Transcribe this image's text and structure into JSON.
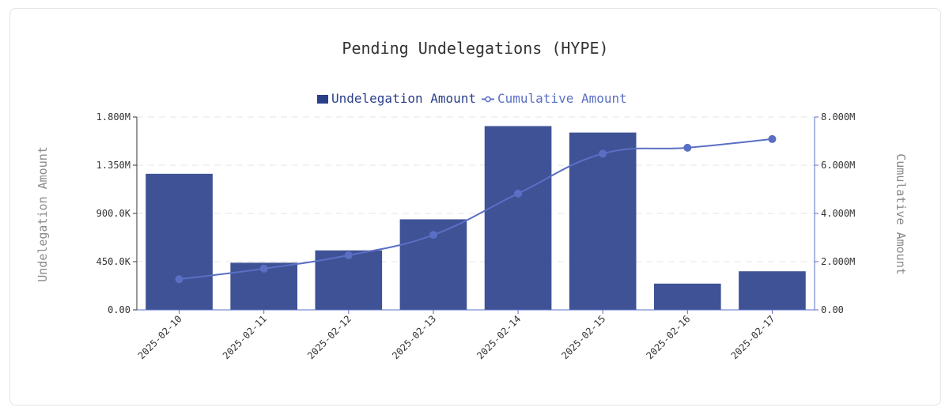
{
  "chart_data": {
    "type": "bar",
    "title": "Pending Undelegations (HYPE)",
    "categories": [
      "2025-02-10",
      "2025-02-11",
      "2025-02-12",
      "2025-02-13",
      "2025-02-14",
      "2025-02-15",
      "2025-02-16",
      "2025-02-17"
    ],
    "series": [
      {
        "name": "Undelegation Amount",
        "type": "bar",
        "axis": "left",
        "color": "#2a3f8a",
        "values": [
          1270000,
          440000,
          555000,
          845000,
          1715000,
          1655000,
          245000,
          360000
        ]
      },
      {
        "name": "Cumulative Amount",
        "type": "line",
        "axis": "right",
        "color": "#5a6fc4",
        "values": [
          1270000,
          1710000,
          2265000,
          3110000,
          4825000,
          6480000,
          6725000,
          7085000
        ]
      }
    ],
    "ylabel": "Undelegation Amount",
    "y2label": "Cumulative Amount",
    "ylim": [
      0,
      1800000
    ],
    "y2lim": [
      0,
      8000000
    ],
    "yticks": [
      "0.00",
      "450.0K",
      "900.0K",
      "1.350M",
      "1.800M"
    ],
    "y2ticks": [
      "0.00",
      "2.000M",
      "4.000M",
      "6.000M",
      "8.000M"
    ],
    "grid": true,
    "legend_position": "top-center"
  }
}
